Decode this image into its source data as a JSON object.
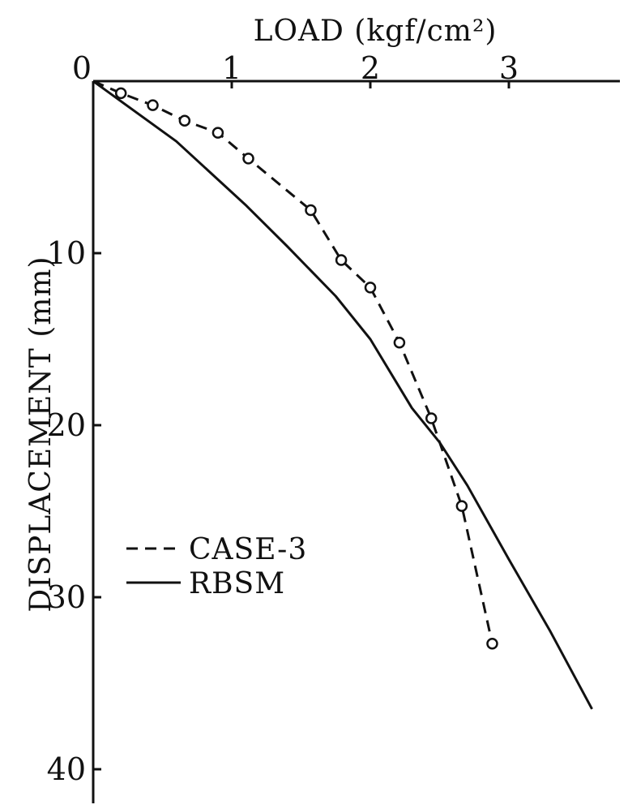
{
  "chart_data": {
    "type": "line",
    "title": "",
    "xlabel": "LOAD (kgf/cm²)",
    "ylabel": "DISPLACEMENT (mm)",
    "xlim": [
      0,
      3.8
    ],
    "ylim": [
      0,
      42
    ],
    "y_inverted": true,
    "x_axis_position": "top",
    "x_ticks": [
      0,
      1,
      2,
      3
    ],
    "y_ticks": [
      10,
      20,
      30,
      40
    ],
    "origin_label": "0",
    "grid": false,
    "legend_position": "lower-left",
    "series": [
      {
        "name": "CASE-3",
        "style": "dashed",
        "marker": "open-circle",
        "color": "#111111",
        "x": [
          0,
          0.2,
          0.43,
          0.66,
          0.9,
          1.12,
          1.57,
          1.79,
          2.0,
          2.21,
          2.44,
          2.66,
          2.88
        ],
        "y": [
          0,
          0.7,
          1.4,
          2.3,
          3.0,
          4.5,
          7.5,
          10.4,
          12.0,
          15.2,
          19.6,
          24.7,
          32.7
        ]
      },
      {
        "name": "RBSM",
        "style": "solid",
        "marker": "none",
        "color": "#111111",
        "x": [
          0,
          0.6,
          1.1,
          1.4,
          1.75,
          2.0,
          2.3,
          2.5,
          2.7,
          3.0,
          3.3,
          3.6
        ],
        "y": [
          0,
          3.5,
          7.2,
          9.6,
          12.5,
          15.0,
          19.0,
          21.0,
          23.5,
          27.8,
          32.0,
          36.5
        ]
      }
    ]
  }
}
